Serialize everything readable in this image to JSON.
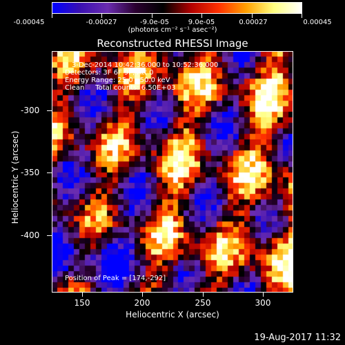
{
  "colorbar": {
    "tick_labels": [
      "-0.00045",
      "-0.00027",
      "-9.0e-05",
      "9.0e-05",
      "0.00027",
      "0.00045"
    ],
    "units": "(photons cm⁻² s⁻¹ asec⁻²)"
  },
  "title": "Reconstructed RHESSI Image",
  "info": {
    "time_range": "3-Dec-2014 10:42:36.000 to 10:52:36.000",
    "detectors": "Detectors: 3F 6F 9F, Att 0",
    "energy": "Energy Range: 25.0 - 50.0 keV",
    "clean": "Clean     Total counts: 6.50E+03",
    "peak": "Position of Peak = [174,-292]"
  },
  "axes": {
    "x_title": "Heliocentric X (arcsec)",
    "y_title": "Heliocentric Y (arcsec)",
    "x_ticks": [
      "150",
      "200",
      "250",
      "300"
    ],
    "y_ticks": [
      "-300",
      "-350",
      "-400"
    ]
  },
  "footer": "19-Aug-2017 11:32",
  "colors": {
    "colormap": [
      "#0000ff",
      "#3a10b0",
      "#6a2cb0",
      "#2a0030",
      "#000000",
      "#b00000",
      "#ff3000",
      "#ffa000",
      "#ffff80",
      "#ffffff"
    ]
  }
}
